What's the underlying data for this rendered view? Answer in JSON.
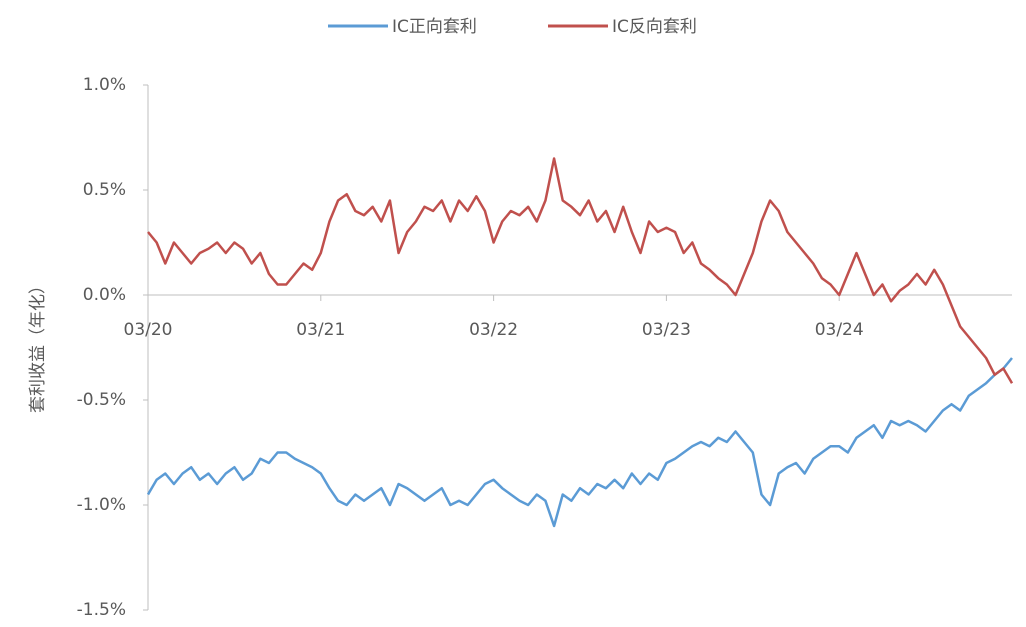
{
  "chart_data": {
    "type": "line",
    "y_label": "套利收益（年化）",
    "categories": [
      "03/20",
      null,
      null,
      null,
      null,
      null,
      null,
      null,
      null,
      null,
      null,
      null,
      null,
      null,
      null,
      null,
      null,
      null,
      null,
      null,
      "03/21",
      null,
      null,
      null,
      null,
      null,
      null,
      null,
      null,
      null,
      null,
      null,
      null,
      null,
      null,
      null,
      null,
      null,
      null,
      null,
      "03/22",
      null,
      null,
      null,
      null,
      null,
      null,
      null,
      null,
      null,
      null,
      null,
      null,
      null,
      null,
      null,
      null,
      null,
      null,
      null,
      "03/23",
      null,
      null,
      null,
      null,
      null,
      null,
      null,
      null,
      null,
      null,
      null,
      null,
      null,
      null,
      null,
      null,
      null,
      null,
      null,
      "03/24",
      null,
      null,
      null,
      null,
      null,
      null,
      null,
      null,
      null,
      null,
      null,
      null,
      null,
      null,
      null,
      null,
      null,
      null,
      null,
      null
    ],
    "series": [
      {
        "name": "IC正向套利",
        "color": "#5b9bd5",
        "values": [
          -0.95,
          -0.88,
          -0.85,
          -0.9,
          -0.85,
          -0.82,
          -0.88,
          -0.85,
          -0.9,
          -0.85,
          -0.82,
          -0.88,
          -0.85,
          -0.78,
          -0.8,
          -0.75,
          -0.75,
          -0.78,
          -0.8,
          -0.82,
          -0.85,
          -0.92,
          -0.98,
          -1.0,
          -0.95,
          -0.98,
          -0.95,
          -0.92,
          -1.0,
          -0.9,
          -0.92,
          -0.95,
          -0.98,
          -0.95,
          -0.92,
          -1.0,
          -0.98,
          -1.0,
          -0.95,
          -0.9,
          -0.88,
          -0.92,
          -0.95,
          -0.98,
          -1.0,
          -0.95,
          -0.98,
          -1.1,
          -0.95,
          -0.98,
          -0.92,
          -0.95,
          -0.9,
          -0.92,
          -0.88,
          -0.92,
          -0.85,
          -0.9,
          -0.85,
          -0.88,
          -0.8,
          -0.78,
          -0.75,
          -0.72,
          -0.7,
          -0.72,
          -0.68,
          -0.7,
          -0.65,
          -0.7,
          -0.75,
          -0.95,
          -1.0,
          -0.85,
          -0.82,
          -0.8,
          -0.85,
          -0.78,
          -0.75,
          -0.72,
          -0.72,
          -0.75,
          -0.68,
          -0.65,
          -0.62,
          -0.68,
          -0.6,
          -0.62,
          -0.6,
          -0.62,
          -0.65,
          -0.6,
          -0.55,
          -0.52,
          -0.55,
          -0.48,
          -0.45,
          -0.42,
          -0.38,
          -0.35,
          -0.3
        ]
      },
      {
        "name": "IC反向套利",
        "color": "#c0504d",
        "values": [
          0.3,
          0.25,
          0.15,
          0.25,
          0.2,
          0.15,
          0.2,
          0.22,
          0.25,
          0.2,
          0.25,
          0.22,
          0.15,
          0.2,
          0.1,
          0.05,
          0.05,
          0.1,
          0.15,
          0.12,
          0.2,
          0.35,
          0.45,
          0.48,
          0.4,
          0.38,
          0.42,
          0.35,
          0.45,
          0.2,
          0.3,
          0.35,
          0.42,
          0.4,
          0.45,
          0.35,
          0.45,
          0.4,
          0.47,
          0.4,
          0.25,
          0.35,
          0.4,
          0.38,
          0.42,
          0.35,
          0.45,
          0.65,
          0.45,
          0.42,
          0.38,
          0.45,
          0.35,
          0.4,
          0.3,
          0.42,
          0.3,
          0.2,
          0.35,
          0.3,
          0.32,
          0.3,
          0.2,
          0.25,
          0.15,
          0.12,
          0.08,
          0.05,
          0.0,
          0.1,
          0.2,
          0.35,
          0.45,
          0.4,
          0.3,
          0.25,
          0.2,
          0.15,
          0.08,
          0.05,
          0.0,
          0.1,
          0.2,
          0.1,
          0.0,
          0.05,
          -0.03,
          0.02,
          0.05,
          0.1,
          0.05,
          0.12,
          0.05,
          -0.05,
          -0.15,
          -0.2,
          -0.25,
          -0.3,
          -0.38,
          -0.35,
          -0.42
        ]
      }
    ],
    "ylim": [
      -1.5,
      1.0
    ],
    "yticks": [
      {
        "value": -1.5,
        "label": "-1.5%"
      },
      {
        "value": -1.0,
        "label": "-1.0%"
      },
      {
        "value": -0.5,
        "label": "-0.5%"
      },
      {
        "value": 0,
        "label": "0.0%"
      },
      {
        "value": 0.5,
        "label": "0.5%"
      },
      {
        "value": 1.0,
        "label": "1.0%"
      }
    ],
    "grid": false
  }
}
